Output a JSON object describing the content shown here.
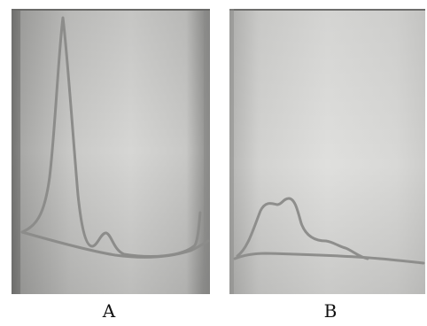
{
  "figure": {
    "panels": [
      {
        "label": "A"
      },
      {
        "label": "B"
      }
    ]
  },
  "colors": {
    "background": "#ffffff",
    "plate": "#c4c4c2",
    "trace": "#8e8e8c",
    "dark_edge": "#707070"
  }
}
